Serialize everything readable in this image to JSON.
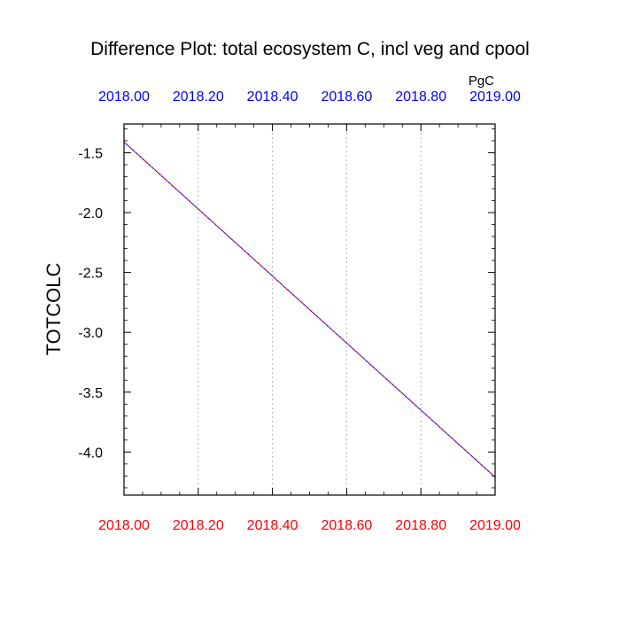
{
  "chart_data": {
    "type": "line",
    "title": "Difference Plot: total ecosystem C, incl veg and cpool",
    "units": "PgC",
    "ylabel": "TOTCOLC",
    "xlabel": "",
    "xlim": [
      2018.0,
      2019.0
    ],
    "ylim": [
      -4.36,
      -1.26
    ],
    "x_ticks": [
      2018.0,
      2018.2,
      2018.4,
      2018.6,
      2018.8,
      2019.0
    ],
    "x_tick_labels_bottom": [
      "2018.00",
      "2018.20",
      "2018.40",
      "2018.60",
      "2018.80",
      "2019.00"
    ],
    "x_tick_labels_top": [
      "2018.00",
      "2018.20",
      "2018.40",
      "2018.60",
      "2018.80",
      "2019.00"
    ],
    "y_ticks": [
      -1.5,
      -2.0,
      -2.5,
      -3.0,
      -3.5,
      -4.0
    ],
    "y_tick_labels": [
      "-1.5",
      "-2.0",
      "-2.5",
      "-3.0",
      "-3.5",
      "-4.0"
    ],
    "x_gridlines": [
      2018.2,
      2018.4,
      2018.6,
      2018.8
    ],
    "grid": "vertical dotted",
    "colors": {
      "bottom_tick_labels": "#ff0000",
      "top_tick_labels": "#0000ff",
      "series_line_a": "#ff0000",
      "series_line_b": "#0000ff",
      "gridline": "#c0c0c0"
    },
    "series": [
      {
        "x": [
          2018.0,
          2019.0
        ],
        "y": [
          -1.41,
          -4.21
        ],
        "color": "#ff0000",
        "style": "dashed"
      },
      {
        "x": [
          2018.0,
          2019.0
        ],
        "y": [
          -1.41,
          -4.21
        ],
        "color": "#0000ff",
        "style": "dashed"
      }
    ]
  }
}
